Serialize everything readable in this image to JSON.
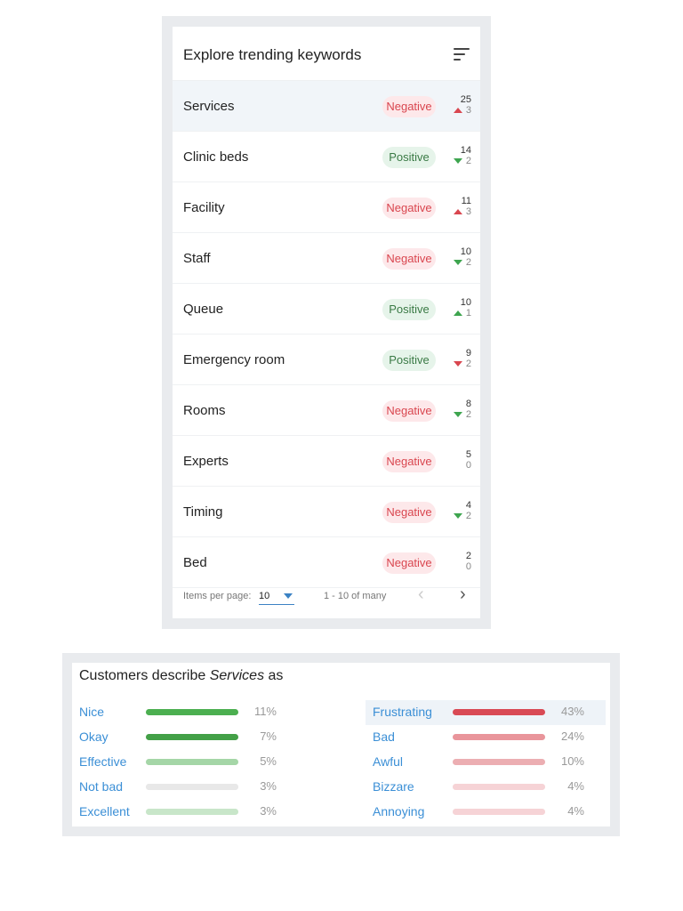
{
  "keywords_card": {
    "title": "Explore trending keywords",
    "filter_icon": "filter-list-icon",
    "rows": [
      {
        "name": "Services",
        "sentiment": "Negative",
        "count": "25",
        "change": "3",
        "direction": "up",
        "arrow_color": "red",
        "selected": true
      },
      {
        "name": "Clinic beds",
        "sentiment": "Positive",
        "count": "14",
        "change": "2",
        "direction": "down",
        "arrow_color": "green",
        "selected": false
      },
      {
        "name": "Facility",
        "sentiment": "Negative",
        "count": "11",
        "change": "3",
        "direction": "up",
        "arrow_color": "red",
        "selected": false
      },
      {
        "name": "Staff",
        "sentiment": "Negative",
        "count": "10",
        "change": "2",
        "direction": "down",
        "arrow_color": "green",
        "selected": false
      },
      {
        "name": "Queue",
        "sentiment": "Positive",
        "count": "10",
        "change": "1",
        "direction": "up",
        "arrow_color": "green",
        "selected": false
      },
      {
        "name": "Emergency room",
        "sentiment": "Positive",
        "count": "9",
        "change": "2",
        "direction": "down",
        "arrow_color": "red",
        "selected": false
      },
      {
        "name": "Rooms",
        "sentiment": "Negative",
        "count": "8",
        "change": "2",
        "direction": "down",
        "arrow_color": "green",
        "selected": false
      },
      {
        "name": "Experts",
        "sentiment": "Negative",
        "count": "5",
        "change": "0",
        "direction": "none",
        "arrow_color": "",
        "selected": false
      },
      {
        "name": "Timing",
        "sentiment": "Negative",
        "count": "4",
        "change": "2",
        "direction": "down",
        "arrow_color": "green",
        "selected": false
      },
      {
        "name": "Bed",
        "sentiment": "Negative",
        "count": "2",
        "change": "0",
        "direction": "none",
        "arrow_color": "",
        "selected": false
      }
    ],
    "pager": {
      "items_label": "Items per page:",
      "page_size": "10",
      "range": "1 - 10 of many",
      "prev": "‹",
      "next": "›"
    }
  },
  "describe_card": {
    "title_prefix": "Customers describe ",
    "title_keyword": "Services",
    "title_suffix": " as",
    "positive": [
      {
        "word": "Nice",
        "percent": "11%",
        "level": 1.0,
        "color": "#4caf50"
      },
      {
        "word": "Okay",
        "percent": "7%",
        "level": 1.0,
        "color": "#43a047"
      },
      {
        "word": "Effective",
        "percent": "5%",
        "level": 1.0,
        "color": "#a5d6a7"
      },
      {
        "word": "Not bad",
        "percent": "3%",
        "level": 1.0,
        "color": "#e8e8e8"
      },
      {
        "word": "Excellent",
        "percent": "3%",
        "level": 1.0,
        "color": "#c8e6c9"
      }
    ],
    "negative": [
      {
        "word": "Frustrating",
        "percent": "43%",
        "level": 1.0,
        "color": "#d94a55",
        "highlight": true
      },
      {
        "word": "Bad",
        "percent": "24%",
        "level": 1.0,
        "color": "#e9959b",
        "highlight": false
      },
      {
        "word": "Awful",
        "percent": "10%",
        "level": 1.0,
        "color": "#ecaeb2",
        "highlight": false
      },
      {
        "word": "Bizzare",
        "percent": "4%",
        "level": 1.0,
        "color": "#f6d3d6",
        "highlight": false
      },
      {
        "word": "Annoying",
        "percent": "4%",
        "level": 1.0,
        "color": "#f6d3d6",
        "highlight": false
      }
    ]
  }
}
